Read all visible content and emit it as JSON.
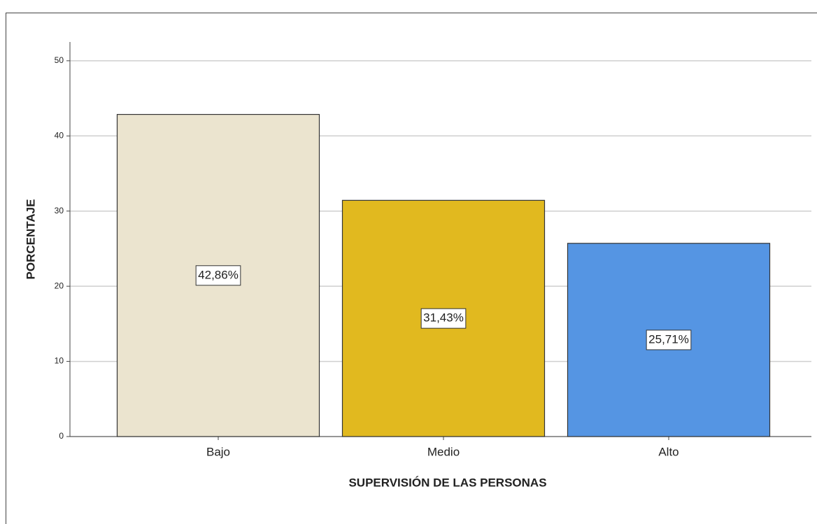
{
  "chart_data": {
    "type": "bar",
    "categories": [
      "Bajo",
      "Medio",
      "Alto"
    ],
    "values": [
      42.86,
      31.43,
      25.71
    ],
    "value_labels": [
      "42,86%",
      "31,43%",
      "25,71%"
    ],
    "colors": [
      "#ebe4cf",
      "#e1b91f",
      "#5595e3"
    ],
    "xlabel": "SUPERVISIÓN DE LAS PERSONAS",
    "ylabel": "PORCENTAJE",
    "ylim": [
      0,
      52.5
    ],
    "yticks": [
      0,
      10,
      20,
      30,
      40,
      50
    ],
    "grid": true
  }
}
